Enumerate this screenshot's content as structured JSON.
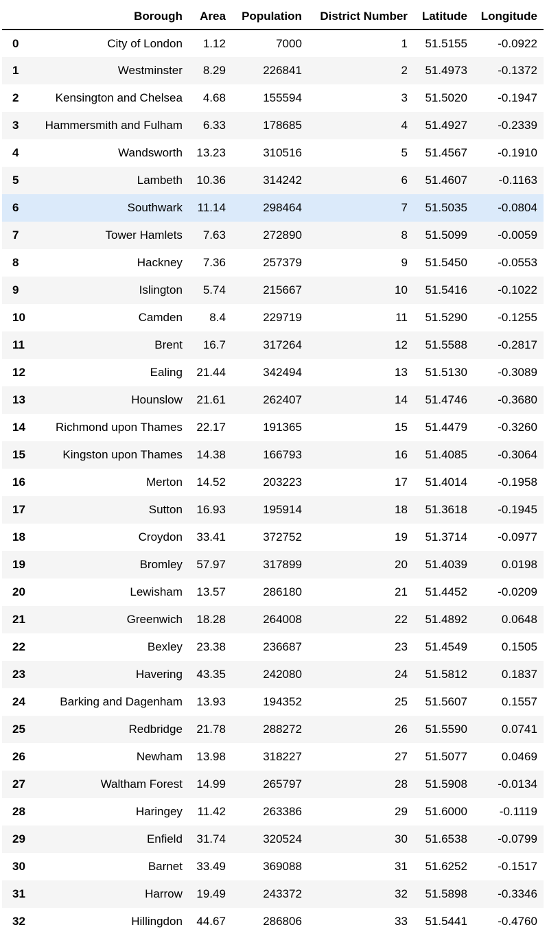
{
  "table": {
    "columns": [
      "",
      "Borough",
      "Area",
      "Population",
      "District Number",
      "Latitude",
      "Longitude"
    ],
    "highlighted_row": 6,
    "rows": [
      [
        "0",
        "City of London",
        "1.12",
        "7000",
        "1",
        "51.5155",
        "-0.0922"
      ],
      [
        "1",
        "Westminster",
        "8.29",
        "226841",
        "2",
        "51.4973",
        "-0.1372"
      ],
      [
        "2",
        "Kensington and Chelsea",
        "4.68",
        "155594",
        "3",
        "51.5020",
        "-0.1947"
      ],
      [
        "3",
        "Hammersmith and Fulham",
        "6.33",
        "178685",
        "4",
        "51.4927",
        "-0.2339"
      ],
      [
        "4",
        "Wandsworth",
        "13.23",
        "310516",
        "5",
        "51.4567",
        "-0.1910"
      ],
      [
        "5",
        "Lambeth",
        "10.36",
        "314242",
        "6",
        "51.4607",
        "-0.1163"
      ],
      [
        "6",
        "Southwark",
        "11.14",
        "298464",
        "7",
        "51.5035",
        "-0.0804"
      ],
      [
        "7",
        "Tower Hamlets",
        "7.63",
        "272890",
        "8",
        "51.5099",
        "-0.0059"
      ],
      [
        "8",
        "Hackney",
        "7.36",
        "257379",
        "9",
        "51.5450",
        "-0.0553"
      ],
      [
        "9",
        "Islington",
        "5.74",
        "215667",
        "10",
        "51.5416",
        "-0.1022"
      ],
      [
        "10",
        "Camden",
        "8.4",
        "229719",
        "11",
        "51.5290",
        "-0.1255"
      ],
      [
        "11",
        "Brent",
        "16.7",
        "317264",
        "12",
        "51.5588",
        "-0.2817"
      ],
      [
        "12",
        "Ealing",
        "21.44",
        "342494",
        "13",
        "51.5130",
        "-0.3089"
      ],
      [
        "13",
        "Hounslow",
        "21.61",
        "262407",
        "14",
        "51.4746",
        "-0.3680"
      ],
      [
        "14",
        "Richmond upon Thames",
        "22.17",
        "191365",
        "15",
        "51.4479",
        "-0.3260"
      ],
      [
        "15",
        "Kingston upon Thames",
        "14.38",
        "166793",
        "16",
        "51.4085",
        "-0.3064"
      ],
      [
        "16",
        "Merton",
        "14.52",
        "203223",
        "17",
        "51.4014",
        "-0.1958"
      ],
      [
        "17",
        "Sutton",
        "16.93",
        "195914",
        "18",
        "51.3618",
        "-0.1945"
      ],
      [
        "18",
        "Croydon",
        "33.41",
        "372752",
        "19",
        "51.3714",
        "-0.0977"
      ],
      [
        "19",
        "Bromley",
        "57.97",
        "317899",
        "20",
        "51.4039",
        "0.0198"
      ],
      [
        "20",
        "Lewisham",
        "13.57",
        "286180",
        "21",
        "51.4452",
        "-0.0209"
      ],
      [
        "21",
        "Greenwich",
        "18.28",
        "264008",
        "22",
        "51.4892",
        "0.0648"
      ],
      [
        "22",
        "Bexley",
        "23.38",
        "236687",
        "23",
        "51.4549",
        "0.1505"
      ],
      [
        "23",
        "Havering",
        "43.35",
        "242080",
        "24",
        "51.5812",
        "0.1837"
      ],
      [
        "24",
        "Barking and Dagenham",
        "13.93",
        "194352",
        "25",
        "51.5607",
        "0.1557"
      ],
      [
        "25",
        "Redbridge",
        "21.78",
        "288272",
        "26",
        "51.5590",
        "0.0741"
      ],
      [
        "26",
        "Newham",
        "13.98",
        "318227",
        "27",
        "51.5077",
        "0.0469"
      ],
      [
        "27",
        "Waltham Forest",
        "14.99",
        "265797",
        "28",
        "51.5908",
        "-0.0134"
      ],
      [
        "28",
        "Haringey",
        "11.42",
        "263386",
        "29",
        "51.6000",
        "-0.1119"
      ],
      [
        "29",
        "Enfield",
        "31.74",
        "320524",
        "30",
        "51.6538",
        "-0.0799"
      ],
      [
        "30",
        "Barnet",
        "33.49",
        "369088",
        "31",
        "51.6252",
        "-0.1517"
      ],
      [
        "31",
        "Harrow",
        "19.49",
        "243372",
        "32",
        "51.5898",
        "-0.3346"
      ],
      [
        "32",
        "Hillingdon",
        "44.67",
        "286806",
        "33",
        "51.5441",
        "-0.4760"
      ]
    ]
  }
}
